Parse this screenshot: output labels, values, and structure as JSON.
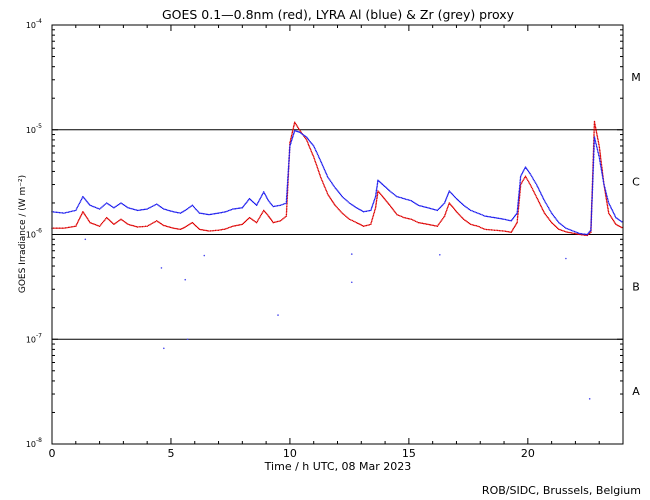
{
  "chart_data": {
    "type": "scatter",
    "title": "GOES 0.1—0.8nm (red), LYRA Al (blue) & Zr (grey) proxy",
    "xlabel": "Time / h UTC, 08 Mar 2023",
    "ylabel": "GOES Irradiance / (W m⁻²)",
    "credit": "ROB/SIDC, Brussels, Belgium",
    "xlim": [
      0,
      24
    ],
    "ylim": [
      1e-08,
      0.0001
    ],
    "yscale": "log",
    "x_ticks": [
      0,
      5,
      10,
      15,
      20
    ],
    "y_ticks": [
      {
        "value": 1e-08,
        "base": "10",
        "exp": "-8"
      },
      {
        "value": 1e-07,
        "base": "10",
        "exp": "-7"
      },
      {
        "value": 1e-06,
        "base": "10",
        "exp": "-6"
      },
      {
        "value": 1e-05,
        "base": "10",
        "exp": "-5"
      },
      {
        "value": 0.0001,
        "base": "10",
        "exp": "-4"
      }
    ],
    "flare_class_lines": [
      1e-07,
      1e-06,
      1e-05
    ],
    "flare_classes": [
      {
        "label": "A",
        "y": 3.2e-08
      },
      {
        "label": "B",
        "y": 3.2e-07
      },
      {
        "label": "C",
        "y": 3.2e-06
      },
      {
        "label": "M",
        "y": 3.2e-05
      }
    ],
    "series": [
      {
        "color": "#dd0000",
        "x": [
          0,
          0.5,
          1.0,
          1.3,
          1.6,
          2.0,
          2.3,
          2.6,
          2.9,
          3.2,
          3.6,
          4.0,
          4.4,
          4.7,
          5.1,
          5.4,
          5.6,
          5.9,
          6.2,
          6.6,
          7.0,
          7.3,
          7.6,
          8.0,
          8.3,
          8.6,
          8.9,
          9.1,
          9.3,
          9.6,
          9.85,
          10.0,
          10.2,
          10.4,
          10.7,
          11.0,
          11.3,
          11.6,
          11.9,
          12.2,
          12.5,
          12.8,
          13.1,
          13.4,
          13.6,
          13.7,
          13.9,
          14.2,
          14.5,
          14.8,
          15.1,
          15.4,
          15.8,
          16.2,
          16.5,
          16.7,
          17.0,
          17.3,
          17.6,
          17.9,
          18.2,
          18.6,
          19.0,
          19.3,
          19.55,
          19.7,
          19.9,
          20.1,
          20.4,
          20.7,
          21.0,
          21.3,
          21.6,
          21.9,
          22.2,
          22.5,
          22.65,
          22.8,
          23.0,
          23.2,
          23.4,
          23.7,
          24.0
        ],
        "values": [
          1.15e-06,
          1.15e-06,
          1.2e-06,
          1.65e-06,
          1.3e-06,
          1.2e-06,
          1.45e-06,
          1.25e-06,
          1.4e-06,
          1.25e-06,
          1.18e-06,
          1.2e-06,
          1.35e-06,
          1.22e-06,
          1.15e-06,
          1.12e-06,
          1.18e-06,
          1.3e-06,
          1.12e-06,
          1.08e-06,
          1.1e-06,
          1.13e-06,
          1.2e-06,
          1.25e-06,
          1.45e-06,
          1.3e-06,
          1.7e-06,
          1.5e-06,
          1.3e-06,
          1.35e-06,
          1.5e-06,
          7.5e-06,
          1.18e-05,
          1e-05,
          8e-06,
          5.5e-06,
          3.5e-06,
          2.4e-06,
          1.9e-06,
          1.6e-06,
          1.4e-06,
          1.3e-06,
          1.2e-06,
          1.25e-06,
          1.8e-06,
          2.6e-06,
          2.3e-06,
          1.9e-06,
          1.55e-06,
          1.45e-06,
          1.4e-06,
          1.3e-06,
          1.25e-06,
          1.2e-06,
          1.5e-06,
          2e-06,
          1.65e-06,
          1.4e-06,
          1.25e-06,
          1.2e-06,
          1.12e-06,
          1.1e-06,
          1.08e-06,
          1.05e-06,
          1.3e-06,
          3e-06,
          3.6e-06,
          3e-06,
          2.2e-06,
          1.6e-06,
          1.3e-06,
          1.12e-06,
          1.06e-06,
          1.03e-06,
          1e-06,
          9.8e-07,
          1.05e-06,
          1.2e-05,
          7e-06,
          3e-06,
          1.6e-06,
          1.25e-06,
          1.15e-06
        ]
      },
      {
        "color": "#1a1aee",
        "x": [
          0,
          0.5,
          1.0,
          1.3,
          1.6,
          2.0,
          2.3,
          2.6,
          2.9,
          3.2,
          3.6,
          4.0,
          4.4,
          4.7,
          5.1,
          5.4,
          5.6,
          5.9,
          6.2,
          6.6,
          7.0,
          7.3,
          7.6,
          8.0,
          8.3,
          8.6,
          8.9,
          9.1,
          9.3,
          9.6,
          9.85,
          10.0,
          10.2,
          10.4,
          10.7,
          11.0,
          11.3,
          11.6,
          11.9,
          12.2,
          12.5,
          12.8,
          13.1,
          13.4,
          13.6,
          13.7,
          13.9,
          14.2,
          14.5,
          14.8,
          15.1,
          15.4,
          15.8,
          16.2,
          16.5,
          16.7,
          17.0,
          17.3,
          17.6,
          17.9,
          18.2,
          18.6,
          19.0,
          19.3,
          19.55,
          19.7,
          19.9,
          20.1,
          20.4,
          20.7,
          21.0,
          21.3,
          21.6,
          21.9,
          22.2,
          22.5,
          22.65,
          22.8,
          23.0,
          23.2,
          23.4,
          23.7,
          24.0
        ],
        "values": [
          1.65e-06,
          1.6e-06,
          1.7e-06,
          2.3e-06,
          1.9e-06,
          1.75e-06,
          2e-06,
          1.8e-06,
          2e-06,
          1.8e-06,
          1.7e-06,
          1.75e-06,
          1.95e-06,
          1.75e-06,
          1.65e-06,
          1.6e-06,
          1.7e-06,
          1.9e-06,
          1.6e-06,
          1.55e-06,
          1.6e-06,
          1.65e-06,
          1.75e-06,
          1.8e-06,
          2.2e-06,
          1.9e-06,
          2.55e-06,
          2.1e-06,
          1.85e-06,
          1.9e-06,
          2e-06,
          7e-06,
          9.8e-06,
          9.5e-06,
          8.5e-06,
          7e-06,
          5e-06,
          3.5e-06,
          2.8e-06,
          2.3e-06,
          2e-06,
          1.8e-06,
          1.65e-06,
          1.7e-06,
          2.3e-06,
          3.3e-06,
          3e-06,
          2.6e-06,
          2.3e-06,
          2.2e-06,
          2.1e-06,
          1.9e-06,
          1.8e-06,
          1.7e-06,
          2e-06,
          2.6e-06,
          2.2e-06,
          1.9e-06,
          1.7e-06,
          1.6e-06,
          1.5e-06,
          1.45e-06,
          1.4e-06,
          1.35e-06,
          1.6e-06,
          3.6e-06,
          4.4e-06,
          3.8e-06,
          2.9e-06,
          2.1e-06,
          1.6e-06,
          1.3e-06,
          1.15e-06,
          1.08e-06,
          1.02e-06,
          1e-06,
          1.1e-06,
          8.5e-06,
          5.5e-06,
          3e-06,
          2e-06,
          1.45e-06,
          1.3e-06
        ]
      }
    ],
    "outlier_points": [
      {
        "x": 1.4,
        "y": 9e-07
      },
      {
        "x": 4.6,
        "y": 4.8e-07
      },
      {
        "x": 4.7,
        "y": 8.2e-08
      },
      {
        "x": 5.6,
        "y": 3.7e-07
      },
      {
        "x": 5.7,
        "y": 1e-07
      },
      {
        "x": 6.4,
        "y": 6.3e-07
      },
      {
        "x": 9.5,
        "y": 1.7e-07
      },
      {
        "x": 12.6,
        "y": 6.5e-07
      },
      {
        "x": 12.6,
        "y": 3.5e-07
      },
      {
        "x": 16.3,
        "y": 6.4e-07
      },
      {
        "x": 21.6,
        "y": 5.9e-07
      },
      {
        "x": 22.6,
        "y": 2.7e-08
      }
    ]
  }
}
